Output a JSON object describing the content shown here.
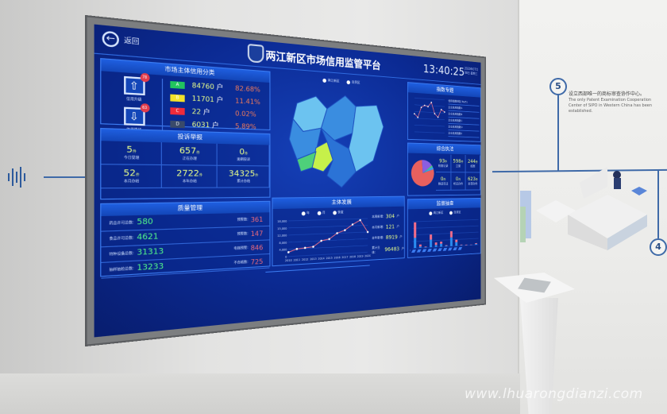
{
  "wall": {
    "milestone_5": "5",
    "milestone_4": "4",
    "milestone_5_cn": "设立西部唯一的商标审查协作中心。",
    "milestone_5_en": "The only Patent Examination Cooperation Center of SIPO in Western China has been established.",
    "watermark": "www.lhuarongdianzi.com"
  },
  "screen": {
    "back_label": "返回",
    "title": "两江新区市场信用监管平台",
    "time": "13:40:25",
    "date": "2020年07月08日 星期三",
    "credit": {
      "title": "市场主体信用分类",
      "upgrade_label": "信用升级",
      "upgrade_count": "78",
      "downgrade_label": "信用降级",
      "downgrade_count": "63",
      "unit": "户",
      "grades": [
        {
          "grade": "A",
          "count": "84760",
          "pct": "82.68%",
          "color": "#22c55e"
        },
        {
          "grade": "B",
          "count": "11701",
          "pct": "11.41%",
          "color": "#f2e22a"
        },
        {
          "grade": "C",
          "count": "22",
          "pct": "0.02%",
          "color": "#ef2b3a"
        },
        {
          "grade": "D",
          "count": "6031",
          "pct": "5.89%",
          "color": "#3a4a6a"
        }
      ]
    },
    "complaints": {
      "title": "投诉举报",
      "unit": "件",
      "items": [
        {
          "value": "5",
          "label": "今日受理"
        },
        {
          "value": "657",
          "label": "正在办理"
        },
        {
          "value": "0",
          "label": "逾期投诉"
        },
        {
          "value": "52",
          "label": "本月办结"
        },
        {
          "value": "2722",
          "label": "本年办结"
        },
        {
          "value": "34325",
          "label": "累计办结"
        }
      ]
    },
    "quality": {
      "title": "质量管理",
      "rows": [
        {
          "label": "药品许可总数:",
          "value": "580",
          "label2": "预警数:",
          "value2": "361"
        },
        {
          "label": "食品许可总数:",
          "value": "4621",
          "label2": "预警数:",
          "value2": "147"
        },
        {
          "label": "特种设备总数:",
          "value": "31313",
          "label2": "电梯预警:",
          "value2": "846"
        },
        {
          "label": "抽样抽检总数:",
          "value": "13233",
          "label2": "不合格数:",
          "value2": "725"
        }
      ]
    },
    "map": {
      "legend": [
        "两江新区",
        "自贸区"
      ],
      "colors": {
        "light": "#6cc3f0",
        "mid": "#3a8de0",
        "highlight": "#c6f04a",
        "green": "#4ed07a"
      }
    },
    "growth": {
      "title": "主体发展",
      "legend": [
        "年",
        "月",
        "季度"
      ],
      "stats": [
        {
          "label": "本周新增:",
          "value": "304",
          "unit": "户"
        },
        {
          "label": "本月新增:",
          "value": "121",
          "unit": "户"
        },
        {
          "label": "本年新增:",
          "value": "8919",
          "unit": "户"
        },
        {
          "label": "累计主体:",
          "value": "96483",
          "unit": "户"
        }
      ],
      "chart_data": {
        "type": "line",
        "x": [
          "2010",
          "2011",
          "2012",
          "2013",
          "2014",
          "2015",
          "2016",
          "2017",
          "2018",
          "2019",
          "2020"
        ],
        "values": [
          3000,
          5000,
          5500,
          6000,
          10000,
          11000,
          15000,
          17000,
          21000,
          24000,
          15000
        ],
        "yticks": [
          "0",
          "4,000",
          "8,000",
          "12,000",
          "15,000",
          "18,000"
        ],
        "ylim": [
          0,
          25000
        ]
      }
    },
    "index": {
      "title": "指数专题",
      "chart_data": {
        "type": "line",
        "values": [
          1600,
          1300,
          2200,
          2400,
          2300,
          2700,
          1700,
          1400,
          2100,
          1900
        ],
        "ylim": [
          0,
          3000
        ]
      },
      "list": [
        "信用指数排名(Top5)",
        "企业信用指数A",
        "企业信用指数B",
        "企业信用指数C",
        "企业信用指数D",
        "企业信用指数E"
      ]
    },
    "enforcement": {
      "title": "综合执法",
      "chart_data": {
        "type": "pie",
        "values": [
          79,
          16,
          2,
          3
        ],
        "colors": [
          "#e8605e",
          "#8a5ee0",
          "#4ed07a",
          "#3aa0f0"
        ]
      },
      "stats": [
        {
          "value": "93",
          "label": "检查记录"
        },
        {
          "value": "598",
          "label": "立案"
        },
        {
          "value": "244",
          "label": "结案"
        },
        {
          "value": "0",
          "label": "移送司法"
        },
        {
          "value": "0",
          "label": "听证办件"
        },
        {
          "value": "623",
          "label": "处罚办件"
        }
      ],
      "unit": "件"
    },
    "inspection": {
      "title": "监督抽查",
      "legend": [
        "两江新区",
        "自贸区"
      ],
      "chart_data": {
        "type": "bar",
        "series": [
          {
            "values": [
              40,
              5,
              2,
              30,
              8,
              12,
              3,
              35,
              15,
              2,
              1,
              1,
              4
            ]
          },
          {
            "values": [
              60,
              8,
              2,
              20,
              10,
              8,
              2,
              25,
              10,
              2,
              2,
              1,
              3
            ]
          }
        ],
        "colors": [
          "#2a8cf0",
          "#f06c8a"
        ]
      }
    }
  }
}
